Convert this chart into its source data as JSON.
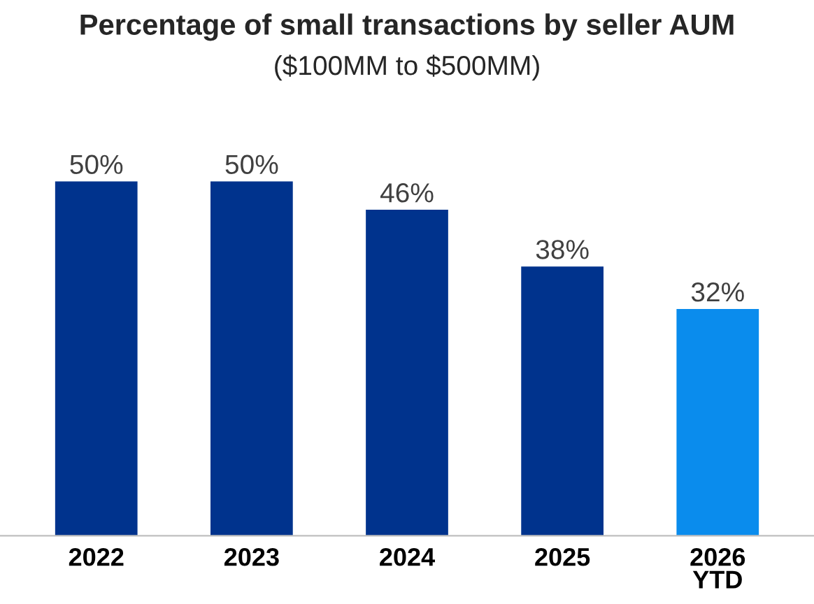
{
  "chart_data": {
    "type": "bar",
    "title": "Percentage of small transactions by seller AUM",
    "subtitle": "($100MM to $500MM)",
    "categories": [
      "2022",
      "2023",
      "2024",
      "2025",
      "2026\nYTD"
    ],
    "values": [
      50,
      50,
      46,
      38,
      32
    ],
    "value_labels": [
      "50%",
      "50%",
      "46%",
      "38%",
      "32%"
    ],
    "colors": [
      "#00338d",
      "#00338d",
      "#00338d",
      "#00338d",
      "#0a8ced"
    ],
    "grid": false,
    "legend": false
  }
}
